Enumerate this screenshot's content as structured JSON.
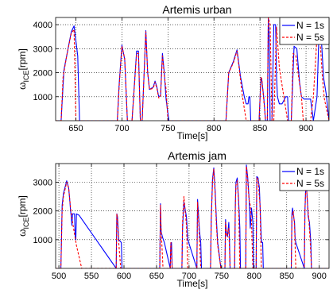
{
  "chart_data": [
    {
      "type": "line",
      "title": "Artemis urban",
      "xlabel": "Time[s]",
      "ylabel": "ω_ICE[rpm]",
      "ylabel_main": "ω",
      "ylabel_sub": "ICE",
      "ylabel_unit": "[rpm]",
      "xlim": [
        628,
        925
      ],
      "ylim": [
        0,
        4300
      ],
      "xticks": [
        650,
        700,
        750,
        800,
        850,
        900
      ],
      "yticks": [
        1000,
        2000,
        3000,
        4000
      ],
      "grid": true,
      "legend_position": "top-right",
      "series": [
        {
          "name": "N = 1s",
          "color": "#0000ff",
          "dash": "solid",
          "x": [
            628,
            634,
            637,
            640,
            645,
            648,
            652,
            654,
            695,
            697,
            700,
            703,
            706,
            711,
            716,
            718,
            720,
            722,
            726,
            728,
            730,
            734,
            736,
            738,
            740,
            742,
            744,
            746,
            748,
            751,
            813,
            816,
            821,
            825,
            829,
            833,
            835,
            837,
            838,
            839,
            840,
            849,
            851,
            852,
            854,
            856,
            857,
            858,
            859,
            860,
            861,
            863,
            865,
            867,
            868,
            869,
            871,
            874,
            878,
            880,
            881,
            884,
            887,
            890,
            893,
            895,
            898,
            905,
            908,
            912,
            914,
            915,
            917,
            919,
            922,
            925
          ],
          "y": [
            0,
            0,
            2100,
            2700,
            3700,
            3950,
            2700,
            0,
            0,
            1500,
            3150,
            2550,
            0,
            0,
            2900,
            2900,
            0,
            0,
            3750,
            2000,
            1300,
            1400,
            1650,
            1400,
            1000,
            1050,
            2800,
            2000,
            900,
            0,
            0,
            2000,
            2450,
            2950,
            1800,
            1000,
            700,
            700,
            1000,
            1000,
            0,
            0,
            1800,
            1700,
            1000,
            0,
            0,
            0,
            4300,
            3500,
            0,
            0,
            4000,
            4000,
            1800,
            1000,
            700,
            700,
            1000,
            1000,
            0,
            0,
            3100,
            3000,
            1600,
            1000,
            900,
            900,
            0,
            1000,
            3600,
            4000,
            3200,
            1800,
            1100,
            0
          ]
        },
        {
          "name": "N = 5s",
          "color": "#ff0000",
          "dash": "dashed",
          "x": [
            628,
            634,
            636,
            640,
            645,
            648,
            650,
            695,
            697,
            700,
            703,
            706,
            711,
            716,
            718,
            720,
            722,
            726,
            728,
            730,
            734,
            736,
            738,
            740,
            742,
            744,
            746,
            748,
            750,
            813,
            816,
            821,
            825,
            828,
            831,
            835,
            849,
            851,
            852,
            854,
            856,
            857,
            858,
            859,
            861,
            863,
            865,
            868,
            871,
            880,
            884,
            886,
            889,
            892,
            895,
            897,
            905,
            908,
            912,
            914,
            916,
            918,
            920,
            925
          ],
          "y": [
            0,
            0,
            1800,
            2700,
            3650,
            3800,
            0,
            0,
            1400,
            3100,
            2600,
            0,
            0,
            2800,
            2800,
            0,
            0,
            3700,
            2000,
            1300,
            1350,
            1600,
            1350,
            950,
            1000,
            2700,
            1900,
            1300,
            0,
            0,
            2000,
            2400,
            2900,
            2000,
            1000,
            0,
            0,
            1800,
            1750,
            900,
            0,
            0,
            0,
            4300,
            4000,
            0,
            0,
            3900,
            2200,
            0,
            0,
            2800,
            2700,
            1800,
            1000,
            0,
            0,
            1000,
            3500,
            3900,
            2900,
            1700,
            900,
            0
          ]
        }
      ]
    },
    {
      "type": "line",
      "title": "Artemis jam",
      "xlabel": "Time[s]",
      "ylabel": "ω_ICE[rpm]",
      "ylabel_main": "ω",
      "ylabel_sub": "ICE",
      "ylabel_unit": "[rpm]",
      "xlim": [
        495,
        915
      ],
      "ylim": [
        0,
        3650
      ],
      "xticks": [
        500,
        550,
        600,
        650,
        700,
        750,
        800,
        850,
        900
      ],
      "yticks": [
        1000,
        2000,
        3000
      ],
      "grid": true,
      "legend_position": "top-right",
      "series": [
        {
          "name": "N = 1s",
          "color": "#0000ff",
          "dash": "solid",
          "x": [
            495,
            503,
            505,
            507,
            512,
            515,
            517,
            518,
            519,
            520,
            521,
            524,
            525,
            526,
            527,
            531,
            588,
            589,
            590,
            592,
            596,
            597,
            655,
            656,
            657,
            659,
            662,
            671,
            672,
            673,
            674,
            689,
            690,
            692,
            694,
            696,
            698,
            712,
            713,
            714,
            716,
            718,
            719,
            733,
            734,
            736,
            738,
            740,
            742,
            744,
            749,
            755,
            756,
            757,
            759,
            761,
            762,
            763,
            770,
            771,
            772,
            774,
            776,
            778,
            779,
            787,
            788,
            790,
            792,
            794,
            796,
            798,
            799,
            803,
            804,
            806,
            808,
            811,
            812,
            813,
            814,
            857,
            858,
            859,
            860,
            862,
            863,
            864,
            877,
            878,
            879,
            880,
            881,
            882,
            883,
            885,
            887,
            888,
            915
          ],
          "y": [
            0,
            0,
            2200,
            2600,
            3050,
            2800,
            2300,
            2000,
            1800,
            1500,
            1900,
            1900,
            1100,
            1000,
            1900,
            1850,
            0,
            1900,
            1800,
            1000,
            900,
            0,
            0,
            2250,
            1300,
            1100,
            900,
            0,
            900,
            900,
            0,
            0,
            1400,
            2300,
            2050,
            1800,
            1000,
            0,
            2400,
            2050,
            1300,
            900,
            0,
            0,
            1700,
            3100,
            3500,
            2700,
            1700,
            900,
            0,
            0,
            1700,
            1300,
            1100,
            1600,
            1000,
            0,
            0,
            2200,
            3000,
            3150,
            2400,
            1400,
            0,
            0,
            3600,
            3200,
            2500,
            1400,
            2100,
            1600,
            0,
            0,
            3200,
            3150,
            2800,
            1000,
            900,
            900,
            0,
            0,
            1900,
            2100,
            1900,
            1600,
            1000,
            900,
            0,
            2000,
            2700,
            3000,
            2600,
            2200,
            1800,
            1600,
            900,
            0,
            0
          ]
        },
        {
          "name": "N = 5s",
          "color": "#ff0000",
          "dash": "dashed",
          "x": [
            495,
            503,
            505,
            507,
            512,
            515,
            518,
            521,
            524,
            527,
            531,
            535,
            588,
            589,
            590,
            592,
            595,
            655,
            656,
            657,
            660,
            671,
            672,
            674,
            689,
            690,
            692,
            694,
            696,
            698,
            712,
            713,
            715,
            718,
            733,
            734,
            736,
            738,
            740,
            742,
            744,
            749,
            755,
            756,
            758,
            761,
            763,
            770,
            771,
            772,
            774,
            776,
            778,
            787,
            788,
            790,
            792,
            794,
            796,
            798,
            803,
            804,
            806,
            809,
            811,
            857,
            858,
            860,
            862,
            864,
            877,
            878,
            879,
            880,
            882,
            884,
            886,
            888,
            915
          ],
          "y": [
            0,
            0,
            2000,
            2500,
            3000,
            2800,
            2100,
            1600,
            1200,
            800,
            400,
            0,
            0,
            1900,
            1700,
            900,
            0,
            0,
            2200,
            1400,
            0,
            0,
            900,
            0,
            0,
            1600,
            2500,
            2000,
            1500,
            0,
            0,
            2300,
            1500,
            0,
            0,
            1700,
            3000,
            3450,
            2600,
            1500,
            800,
            0,
            0,
            1600,
            1100,
            1400,
            0,
            0,
            2100,
            2900,
            3050,
            2300,
            0,
            0,
            3550,
            3100,
            2400,
            2200,
            1600,
            0,
            0,
            3150,
            3100,
            2200,
            0,
            0,
            1800,
            2000,
            1500,
            0,
            0,
            2000,
            2600,
            2950,
            2200,
            1700,
            1000,
            0,
            0
          ]
        }
      ]
    }
  ]
}
